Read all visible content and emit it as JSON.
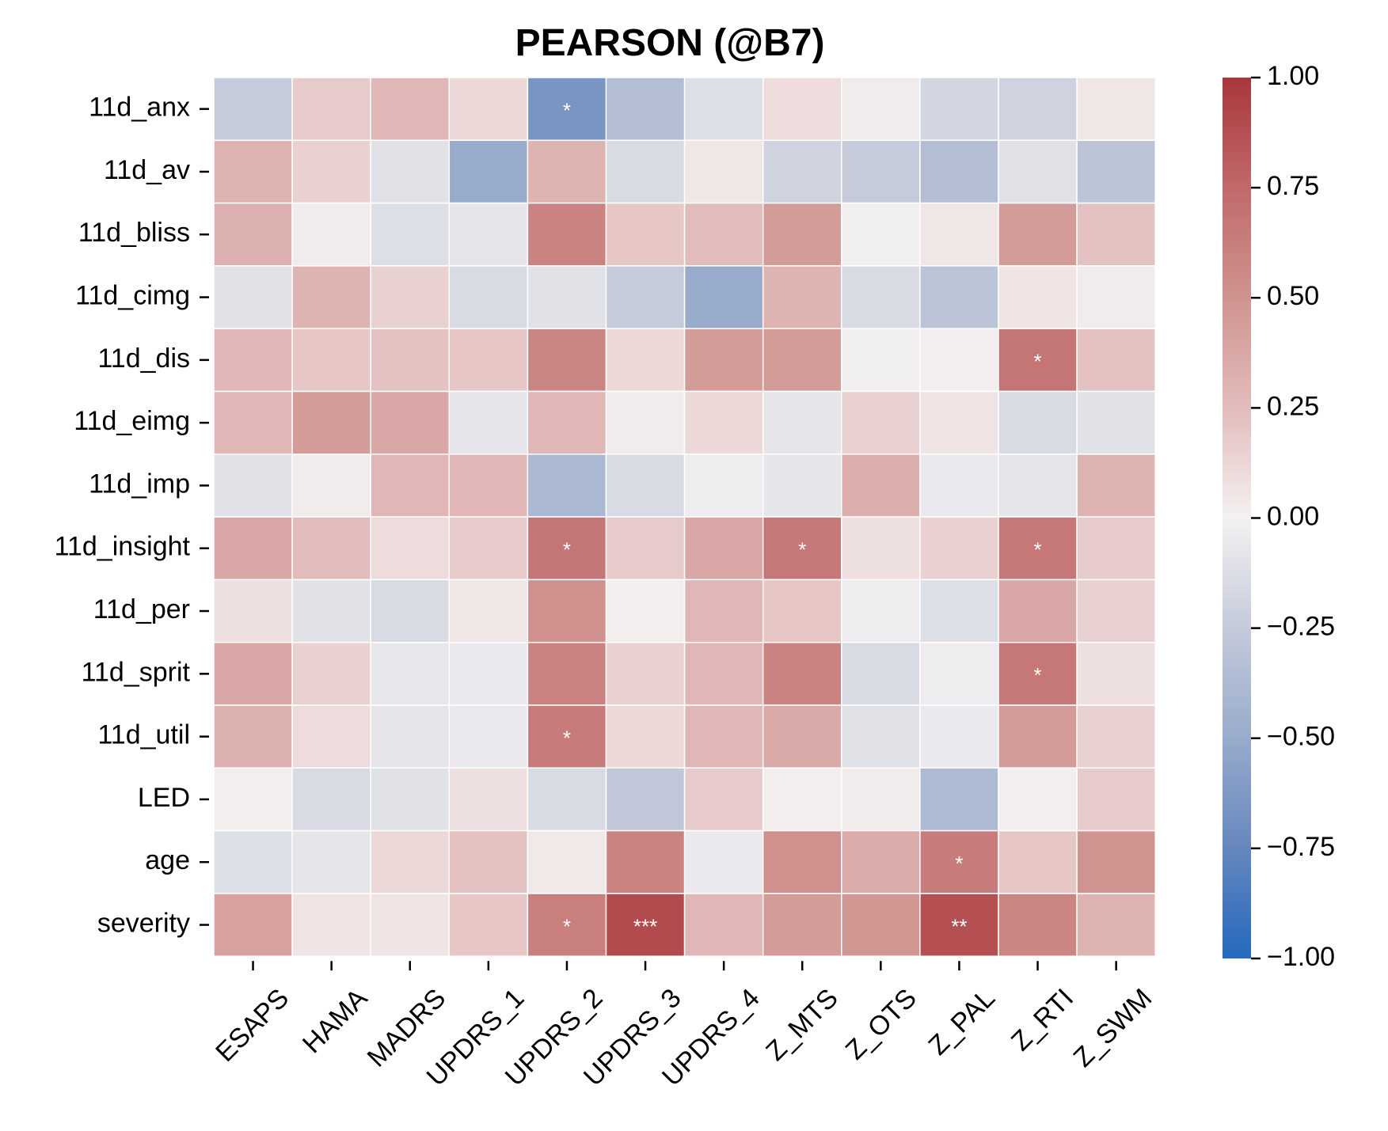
{
  "chart_data": {
    "type": "heatmap",
    "title": "PEARSON (@B7)",
    "xlabel": "",
    "ylabel": "",
    "x_categories": [
      "ESAPS",
      "HAMA",
      "MADRS",
      "UPDRS_1",
      "UPDRS_2",
      "UPDRS_3",
      "UPDRS_4",
      "Z_MTS",
      "Z_OTS",
      "Z_PAL",
      "Z_RTI",
      "Z_SWM"
    ],
    "y_categories": [
      "11d_anx",
      "11d_av",
      "11d_bliss",
      "11d_cimg",
      "11d_dis",
      "11d_eimg",
      "11d_imp",
      "11d_insight",
      "11d_per",
      "11d_sprit",
      "11d_util",
      "LED",
      "age",
      "severity"
    ],
    "values": [
      [
        -0.25,
        0.18,
        0.28,
        0.12,
        -0.65,
        -0.35,
        -0.12,
        0.1,
        0.03,
        -0.18,
        -0.2,
        0.05
      ],
      [
        0.3,
        0.15,
        -0.1,
        -0.5,
        0.3,
        -0.15,
        0.05,
        -0.2,
        -0.25,
        -0.35,
        -0.1,
        -0.3
      ],
      [
        0.32,
        0.03,
        -0.12,
        -0.08,
        0.6,
        0.2,
        0.25,
        0.45,
        -0.02,
        0.05,
        0.45,
        0.22
      ],
      [
        -0.1,
        0.3,
        0.15,
        -0.15,
        -0.1,
        -0.25,
        -0.5,
        0.3,
        -0.15,
        -0.3,
        0.06,
        0.03
      ],
      [
        0.28,
        0.2,
        0.22,
        0.2,
        0.58,
        0.12,
        0.45,
        0.45,
        -0.01,
        0.02,
        0.68,
        0.22
      ],
      [
        0.28,
        0.45,
        0.38,
        -0.08,
        0.28,
        0.03,
        0.12,
        -0.08,
        0.15,
        0.06,
        -0.15,
        -0.1
      ],
      [
        -0.1,
        0.03,
        0.28,
        0.28,
        -0.4,
        -0.15,
        -0.03,
        -0.08,
        0.33,
        -0.05,
        -0.08,
        0.3
      ],
      [
        0.38,
        0.25,
        0.1,
        0.18,
        0.68,
        0.18,
        0.38,
        0.66,
        0.08,
        0.15,
        0.66,
        0.18
      ],
      [
        0.08,
        -0.1,
        -0.15,
        0.05,
        0.52,
        0.02,
        0.28,
        0.2,
        -0.03,
        -0.12,
        0.38,
        0.15
      ],
      [
        0.38,
        0.15,
        -0.07,
        -0.05,
        0.6,
        0.15,
        0.28,
        0.6,
        -0.15,
        -0.03,
        0.66,
        0.08
      ],
      [
        0.32,
        0.1,
        -0.08,
        -0.05,
        0.64,
        0.12,
        0.28,
        0.36,
        -0.1,
        -0.05,
        0.45,
        0.15
      ],
      [
        0.02,
        -0.15,
        -0.1,
        0.08,
        -0.15,
        -0.28,
        0.18,
        0.02,
        0.03,
        -0.38,
        0.02,
        0.18
      ],
      [
        -0.12,
        -0.08,
        0.12,
        0.22,
        0.04,
        0.6,
        -0.05,
        0.52,
        0.35,
        0.64,
        0.2,
        0.5
      ],
      [
        0.42,
        0.06,
        0.06,
        0.2,
        0.62,
        0.9,
        0.28,
        0.45,
        0.48,
        0.88,
        0.58,
        0.3
      ]
    ],
    "annotations": [
      {
        "row": 0,
        "col": 4,
        "text": "*"
      },
      {
        "row": 4,
        "col": 10,
        "text": "*"
      },
      {
        "row": 7,
        "col": 4,
        "text": "*"
      },
      {
        "row": 7,
        "col": 7,
        "text": "*"
      },
      {
        "row": 7,
        "col": 10,
        "text": "*"
      },
      {
        "row": 9,
        "col": 10,
        "text": "*"
      },
      {
        "row": 10,
        "col": 4,
        "text": "*"
      },
      {
        "row": 12,
        "col": 9,
        "text": "*"
      },
      {
        "row": 13,
        "col": 4,
        "text": "*"
      },
      {
        "row": 13,
        "col": 5,
        "text": "***"
      },
      {
        "row": 13,
        "col": 9,
        "text": "**"
      }
    ],
    "colorbar": {
      "vmin": -1.0,
      "vmax": 1.0,
      "ticks": [
        "1.00",
        "0.75",
        "0.50",
        "0.25",
        "0.00",
        "−0.25",
        "−0.50",
        "−0.75",
        "−1.00"
      ],
      "tick_values": [
        1.0,
        0.75,
        0.5,
        0.25,
        0.0,
        -0.25,
        -0.5,
        -0.75,
        -1.0
      ],
      "colormap": "vlag",
      "stops": [
        {
          "v": -1.0,
          "color": "#2369bd"
        },
        {
          "v": -0.75,
          "color": "#6687be"
        },
        {
          "v": -0.5,
          "color": "#98abcb"
        },
        {
          "v": -0.25,
          "color": "#c5cbdb"
        },
        {
          "v": 0.0,
          "color": "#f4f1f1"
        },
        {
          "v": 0.25,
          "color": "#e2bcbb"
        },
        {
          "v": 0.5,
          "color": "#d09490"
        },
        {
          "v": 0.75,
          "color": "#c0696b"
        },
        {
          "v": 1.0,
          "color": "#a9373b"
        }
      ]
    },
    "grid": true,
    "legend": "right colorbar"
  }
}
